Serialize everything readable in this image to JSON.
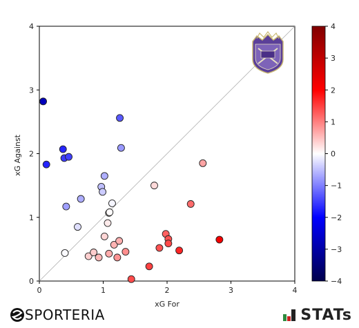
{
  "chart_data": {
    "type": "scatter",
    "xlabel": "xG For",
    "ylabel": "xG Against",
    "xlim": [
      0,
      4
    ],
    "ylim": [
      0,
      4
    ],
    "xticks": [
      "0",
      "1",
      "2",
      "3",
      "4"
    ],
    "yticks": [
      "0",
      "1",
      "2",
      "3",
      "4"
    ],
    "reference_line": "y = x",
    "color_metric": "xG For - xG Against",
    "colorbar": {
      "range": [
        -4,
        4
      ],
      "ticks": [
        "-4",
        "-3",
        "-2",
        "-1",
        "0",
        "1",
        "2",
        "3",
        "4"
      ],
      "colormap": "seismic"
    },
    "points": [
      {
        "x": 0.06,
        "y": 2.82
      },
      {
        "x": 0.11,
        "y": 1.83
      },
      {
        "x": 0.37,
        "y": 2.07
      },
      {
        "x": 0.39,
        "y": 1.93
      },
      {
        "x": 0.46,
        "y": 1.95
      },
      {
        "x": 0.42,
        "y": 1.17
      },
      {
        "x": 0.4,
        "y": 0.44
      },
      {
        "x": 0.6,
        "y": 0.85
      },
      {
        "x": 0.65,
        "y": 1.29
      },
      {
        "x": 0.77,
        "y": 0.39
      },
      {
        "x": 0.85,
        "y": 0.45
      },
      {
        "x": 0.93,
        "y": 0.37
      },
      {
        "x": 0.97,
        "y": 1.48
      },
      {
        "x": 0.99,
        "y": 1.4
      },
      {
        "x": 1.02,
        "y": 1.65
      },
      {
        "x": 1.02,
        "y": 0.7
      },
      {
        "x": 1.07,
        "y": 0.91
      },
      {
        "x": 1.09,
        "y": 1.07
      },
      {
        "x": 1.1,
        "y": 1.08
      },
      {
        "x": 1.14,
        "y": 1.22
      },
      {
        "x": 1.09,
        "y": 0.43
      },
      {
        "x": 1.17,
        "y": 0.57
      },
      {
        "x": 1.22,
        "y": 0.37
      },
      {
        "x": 1.25,
        "y": 0.63
      },
      {
        "x": 1.26,
        "y": 2.56
      },
      {
        "x": 1.28,
        "y": 2.09
      },
      {
        "x": 1.35,
        "y": 0.46
      },
      {
        "x": 1.44,
        "y": 0.03
      },
      {
        "x": 1.72,
        "y": 0.23
      },
      {
        "x": 1.8,
        "y": 1.5
      },
      {
        "x": 1.88,
        "y": 0.52
      },
      {
        "x": 1.98,
        "y": 0.74
      },
      {
        "x": 2.02,
        "y": 0.66
      },
      {
        "x": 2.02,
        "y": 0.59
      },
      {
        "x": 2.19,
        "y": 0.48
      },
      {
        "x": 2.37,
        "y": 1.21
      },
      {
        "x": 2.56,
        "y": 1.85
      },
      {
        "x": 2.82,
        "y": 0.65
      }
    ]
  },
  "branding": {
    "left_logo_text": "SPORTERIA",
    "right_logo_text": "STATs",
    "club_crest": "crest-icon"
  }
}
